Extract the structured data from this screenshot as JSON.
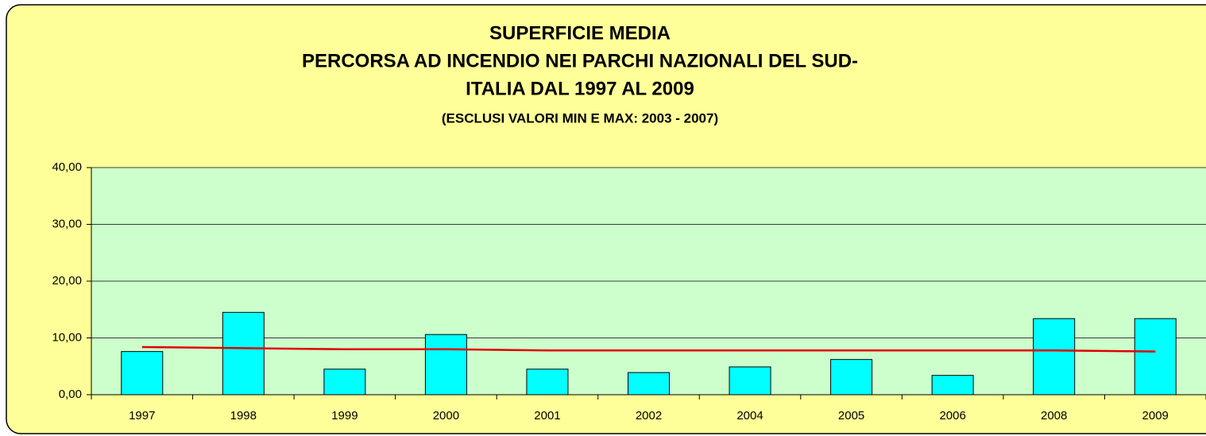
{
  "chart_data": {
    "type": "bar",
    "title": [
      "SUPERFICIE MEDIA",
      "PERCORSA AD INCENDIO NEI PARCHI NAZIONALI DEL SUD-",
      "ITALIA DAL 1997 AL 2009"
    ],
    "subtitle": "(ESCLUSI VALORI MIN E MAX: 2003 - 2007)",
    "categories": [
      "1997",
      "1998",
      "1999",
      "2000",
      "2001",
      "2002",
      "2004",
      "2005",
      "2006",
      "2008",
      "2009"
    ],
    "series": [
      {
        "type": "bar",
        "color": "#00ffff",
        "values": [
          7.6,
          14.5,
          4.5,
          10.6,
          4.5,
          3.9,
          4.9,
          6.2,
          3.4,
          13.4,
          13.4
        ]
      },
      {
        "type": "line",
        "color": "#e00000",
        "values": [
          8.4,
          8.2,
          8.0,
          8.0,
          7.8,
          7.8,
          7.8,
          7.8,
          7.8,
          7.8,
          7.6
        ]
      }
    ],
    "ylim": [
      0,
      40
    ],
    "yticks": [
      {
        "value": 0,
        "label": "0,00"
      },
      {
        "value": 10,
        "label": "10,00"
      },
      {
        "value": 20,
        "label": "20,00"
      },
      {
        "value": 30,
        "label": "30,00"
      },
      {
        "value": 40,
        "label": "40,00"
      }
    ],
    "grid": true
  }
}
